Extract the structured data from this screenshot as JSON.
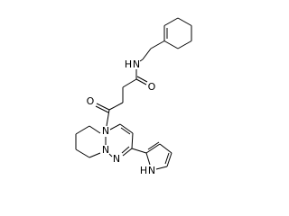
{
  "atoms": [
    {
      "label": "H"
    },
    {
      "label": "N"
    },
    {
      "label": "O"
    },
    {
      "label": "O"
    },
    {
      "label": "N"
    },
    {
      "label": "N"
    },
    {
      "label": "N"
    },
    {
      "label": "H"
    },
    {
      "label": "N"
    }
  ]
}
